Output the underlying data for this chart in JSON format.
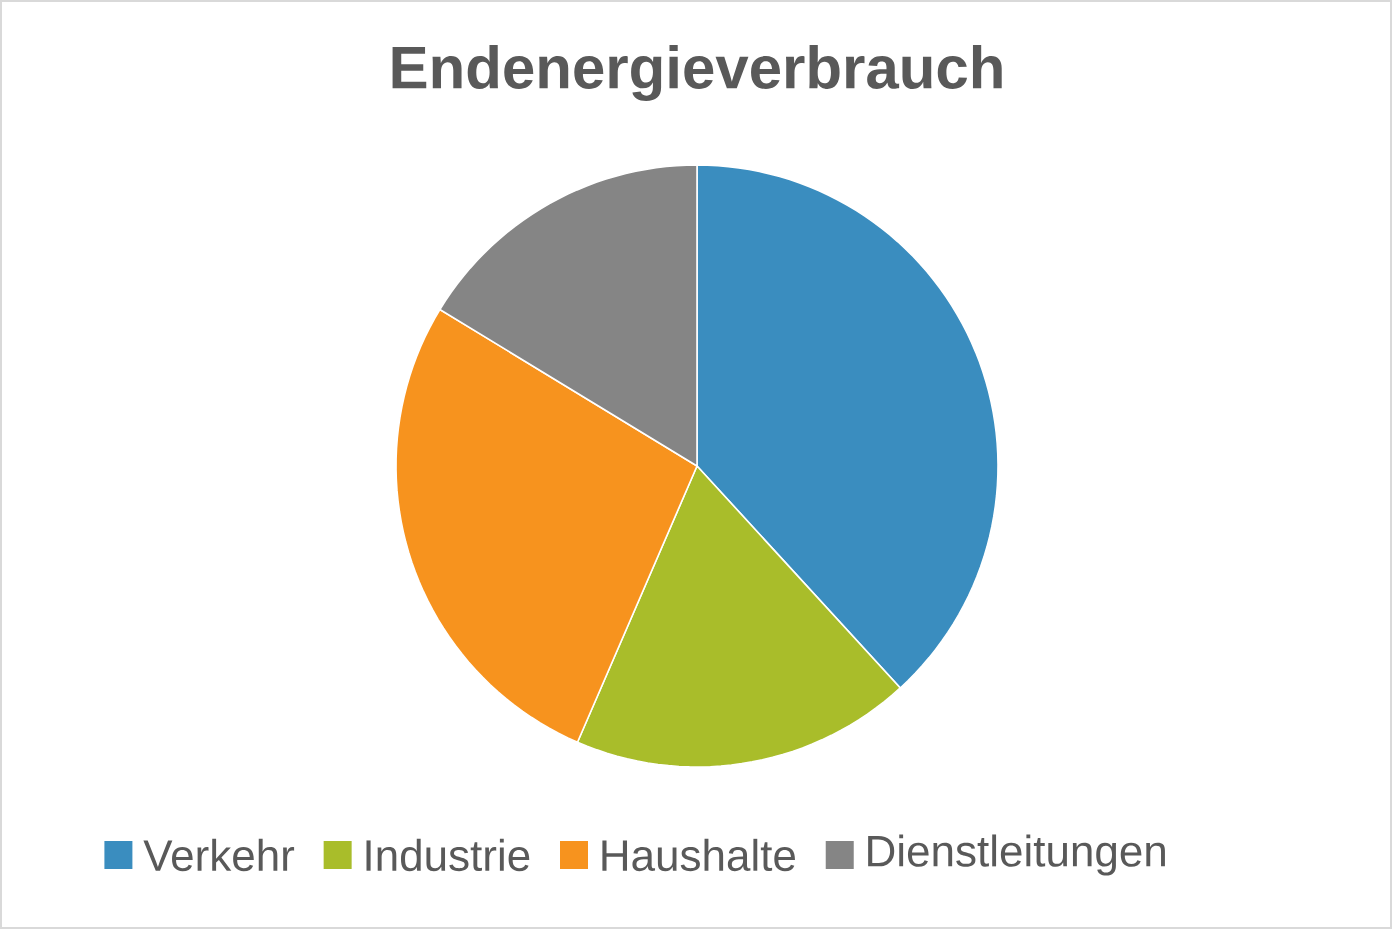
{
  "chart_data": {
    "type": "pie",
    "title": "Endenergieverbrauch",
    "categories": [
      "Verkehr",
      "Industrie",
      "Haushalte",
      "Dienstleitungen"
    ],
    "values": [
      38.2,
      18.3,
      27.2,
      16.3
    ],
    "colors": [
      "#3a8dbf",
      "#a9bd2a",
      "#f7931e",
      "#858585"
    ],
    "legend": "bottom"
  }
}
